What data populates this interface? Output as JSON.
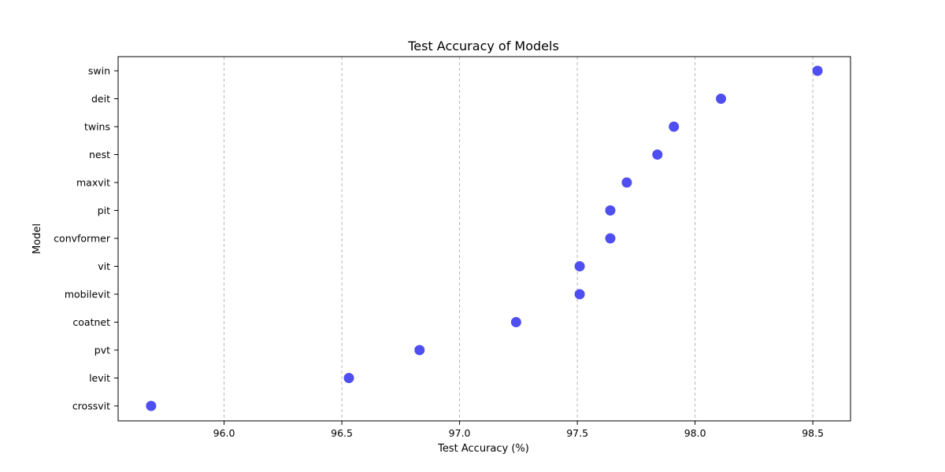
{
  "chart_data": {
    "type": "scatter",
    "title": "Test Accuracy of Models",
    "xlabel": "Test Accuracy (%)",
    "ylabel": "Model",
    "xlim": [
      95.55,
      98.66
    ],
    "xticks": [
      "96.0",
      "96.5",
      "97.0",
      "97.5",
      "98.0",
      "98.5"
    ],
    "grid": "x-dashed",
    "color": "#4646f0",
    "points": [
      {
        "model": "swin",
        "accuracy": 98.52
      },
      {
        "model": "deit",
        "accuracy": 98.11
      },
      {
        "model": "twins",
        "accuracy": 97.91
      },
      {
        "model": "nest",
        "accuracy": 97.84
      },
      {
        "model": "maxvit",
        "accuracy": 97.71
      },
      {
        "model": "pit",
        "accuracy": 97.64
      },
      {
        "model": "convformer",
        "accuracy": 97.64
      },
      {
        "model": "vit",
        "accuracy": 97.51
      },
      {
        "model": "mobilevit",
        "accuracy": 97.51
      },
      {
        "model": "coatnet",
        "accuracy": 97.24
      },
      {
        "model": "pvt",
        "accuracy": 96.83
      },
      {
        "model": "levit",
        "accuracy": 96.53
      },
      {
        "model": "crossvit",
        "accuracy": 95.69
      }
    ]
  }
}
